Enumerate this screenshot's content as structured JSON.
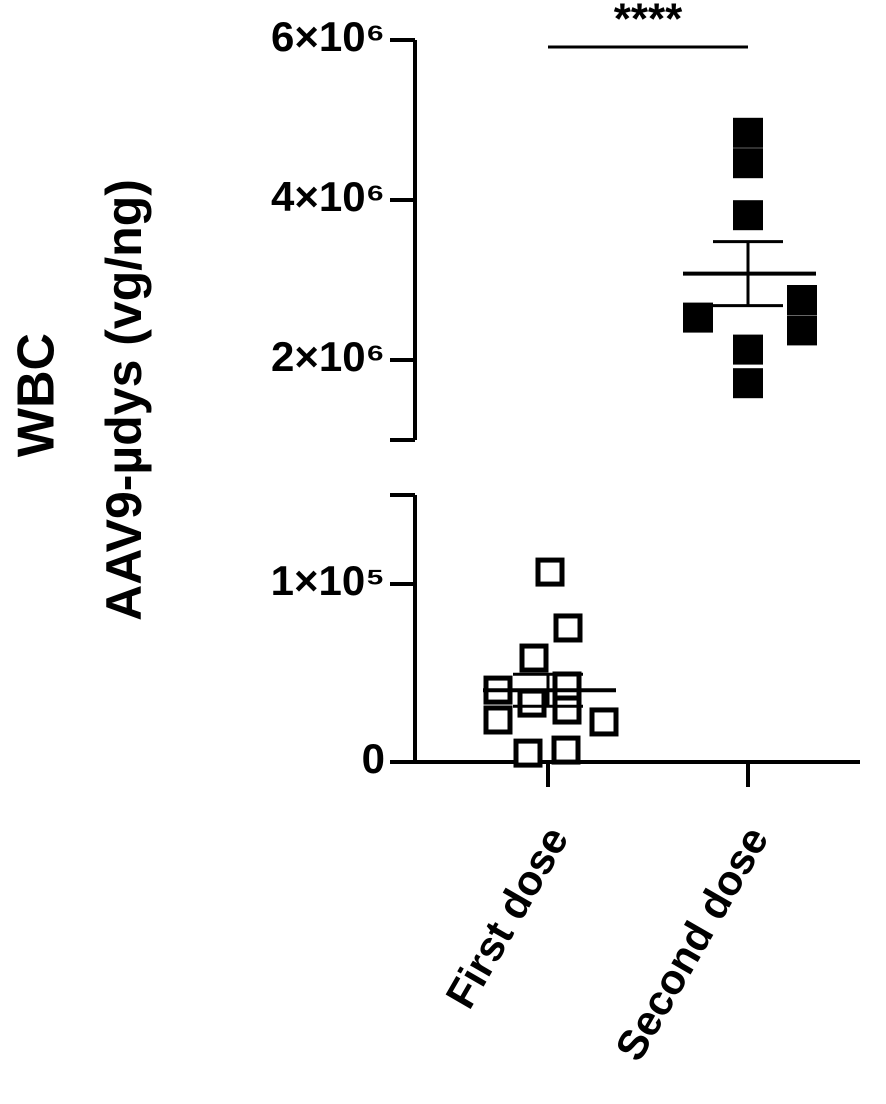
{
  "chart_data": {
    "type": "dotplot",
    "y_label": [
      "WBC",
      "AAV9-µdys (vg/ng)"
    ],
    "categories": [
      "First dose",
      "Second dose"
    ],
    "groups": [
      {
        "values": [
          106700,
          75300,
          58400,
          40400,
          42700,
          33100,
          29200,
          23600,
          22500,
          5000,
          6700
        ],
        "mean": 40300,
        "sem": 9000,
        "filled": false,
        "color": "#000000"
      },
      {
        "values": [
          4840000,
          4460000,
          3810000,
          2530000,
          2750000,
          2370000,
          2130000,
          1710000
        ],
        "mean": 3080000,
        "sem": 400000,
        "filled": true,
        "color": "#000000"
      }
    ],
    "ysegments": [
      {
        "ylim": [
          0,
          150000
        ],
        "yticks": [
          0,
          {
            "value": 100000,
            "label": "1×10⁵"
          }
        ]
      },
      {
        "ylim": [
          1000000,
          6000000
        ],
        "yticks": [
          {
            "value": 2000000,
            "label": "2×10⁶"
          },
          {
            "value": 4000000,
            "label": "4×10⁶"
          },
          {
            "value": 6000000,
            "label": "6×10⁶"
          }
        ]
      }
    ],
    "annotation": "****"
  }
}
